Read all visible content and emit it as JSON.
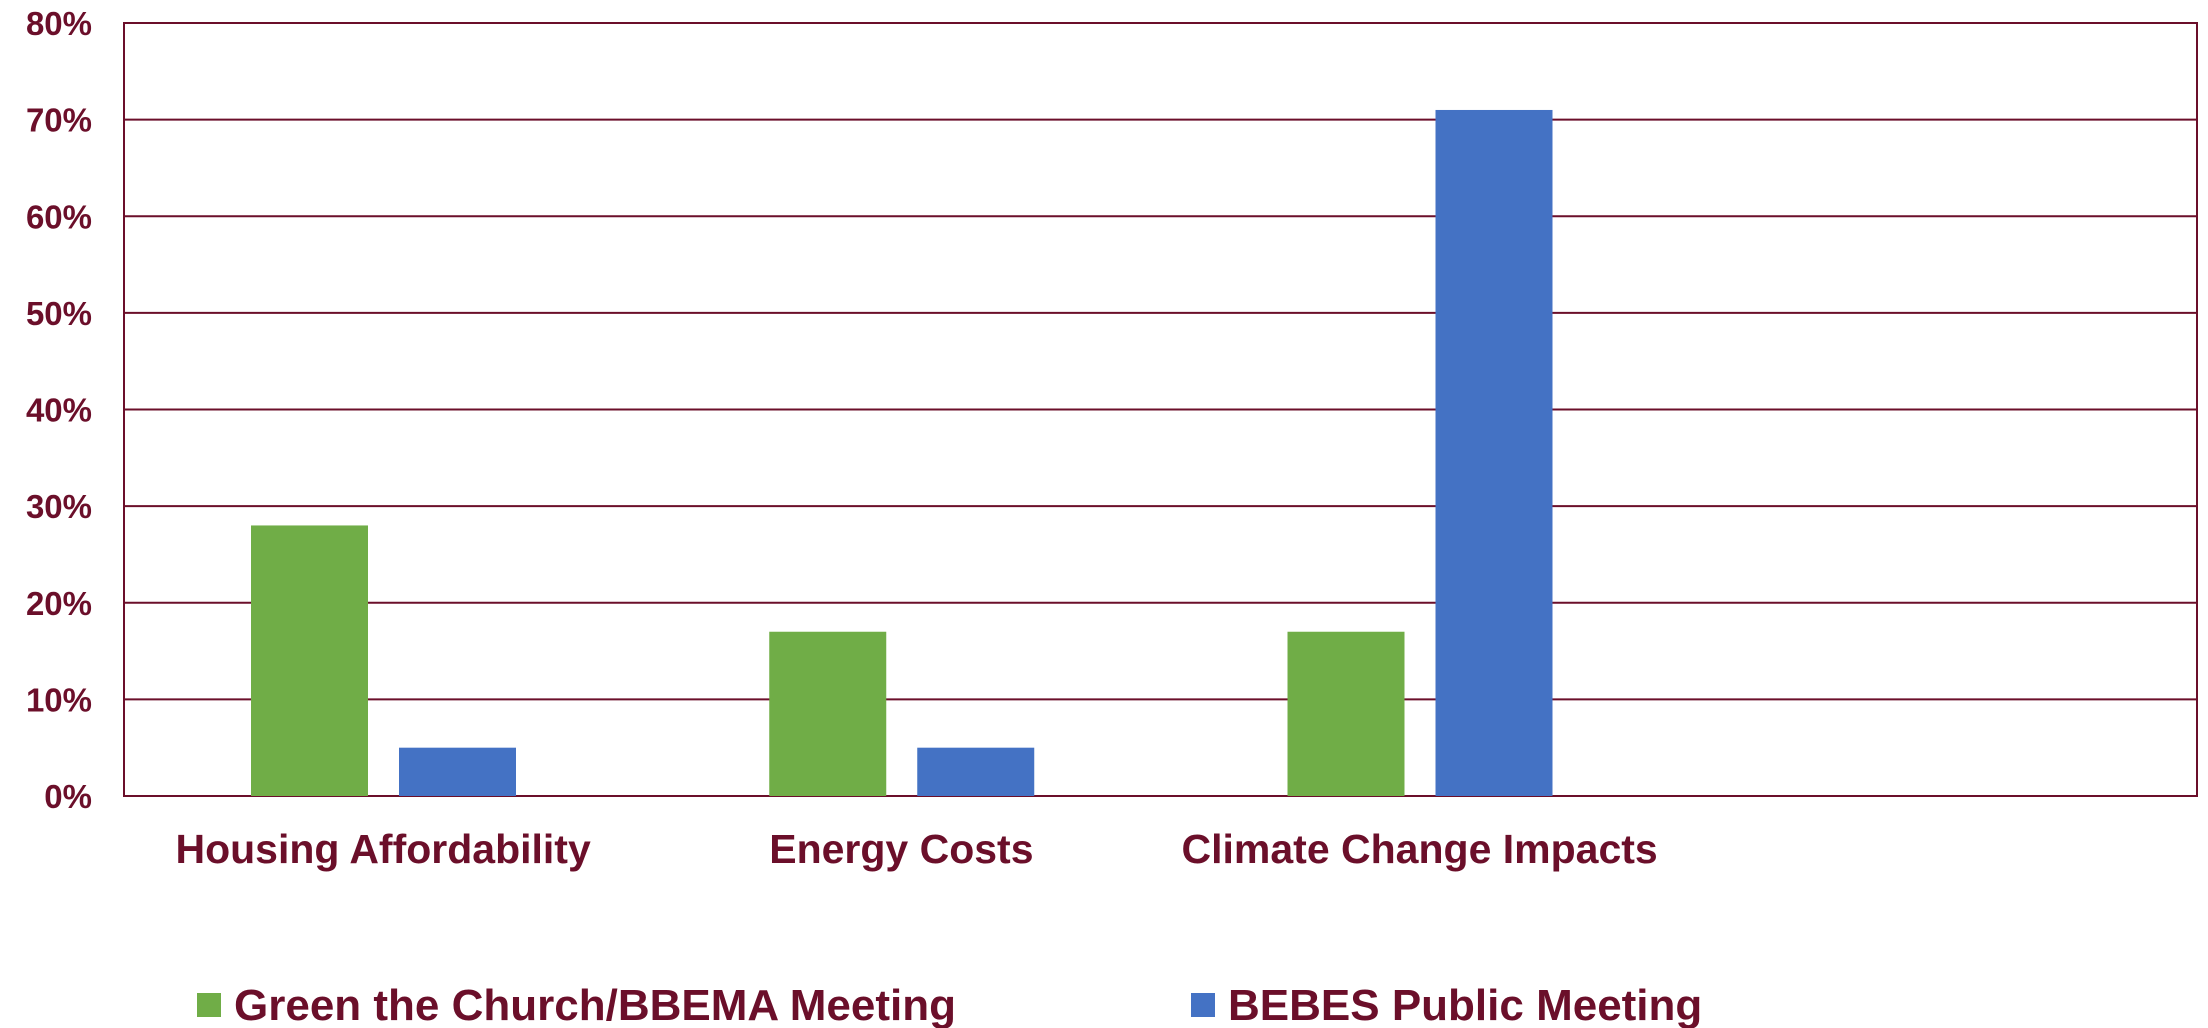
{
  "chart_data": {
    "type": "bar",
    "categories": [
      "Housing Affordability",
      "Energy Costs",
      "Climate Change Impacts",
      null
    ],
    "series": [
      {
        "name": "Green the Church/BBEMA Meeting",
        "color": "#70ad47",
        "values": [
          28,
          17,
          17,
          null
        ]
      },
      {
        "name": "BEBES Public Meeting",
        "color": "#4472c4",
        "values": [
          5,
          5,
          71,
          null
        ]
      }
    ],
    "ylim": [
      0,
      80
    ],
    "yticks": [
      {
        "value": 0,
        "label": "0%"
      },
      {
        "value": 10,
        "label": "10%"
      },
      {
        "value": 20,
        "label": "20%"
      },
      {
        "value": 30,
        "label": "30%"
      },
      {
        "value": 40,
        "label": "40%"
      },
      {
        "value": 50,
        "label": "50%"
      },
      {
        "value": 60,
        "label": "60%"
      },
      {
        "value": 70,
        "label": "70%"
      },
      {
        "value": 80,
        "label": "80%"
      }
    ],
    "grid": true,
    "legend": "bottom"
  }
}
